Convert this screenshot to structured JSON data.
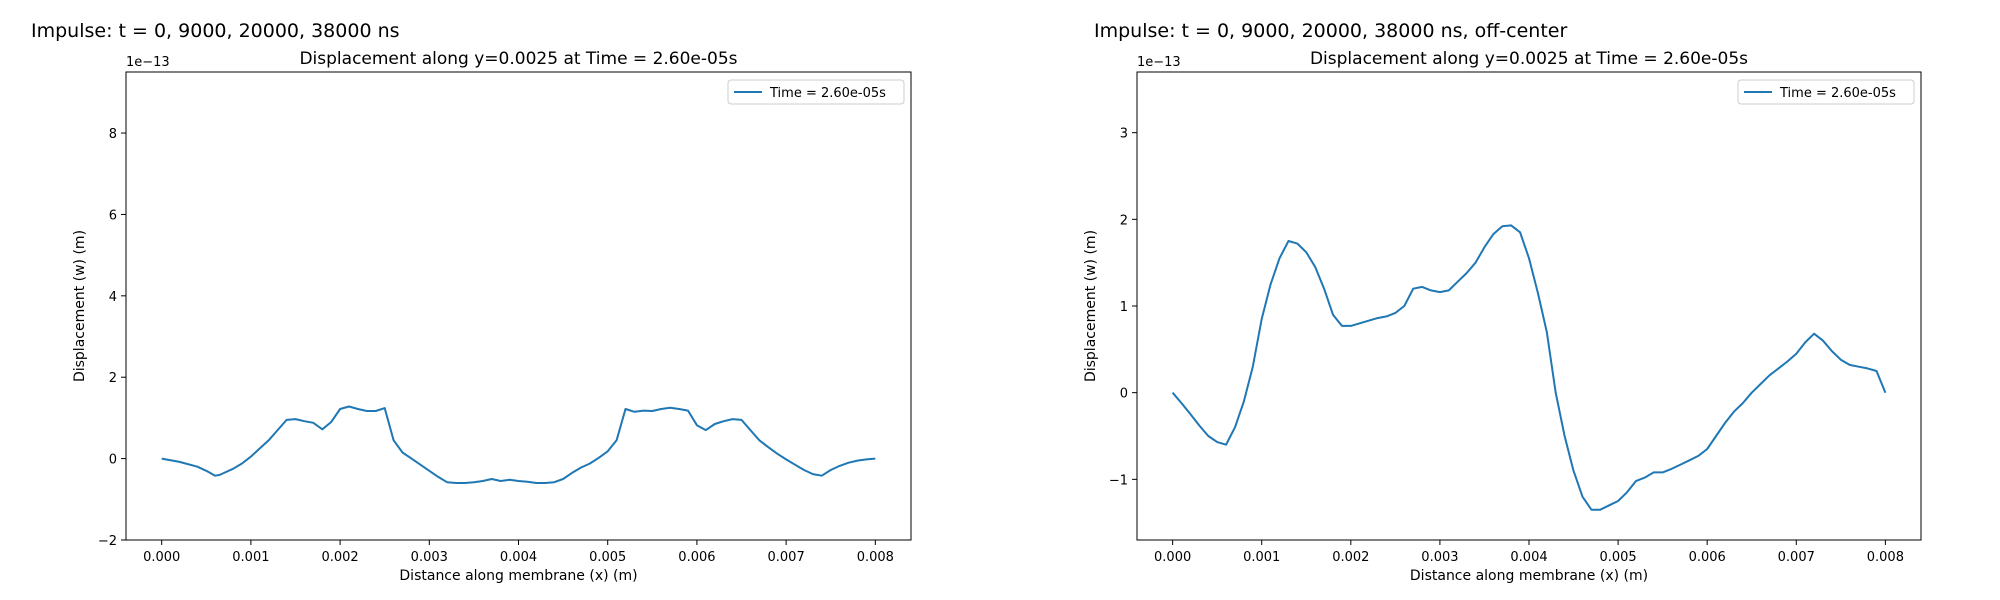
{
  "panels": [
    {
      "header": "Impulse: t = 0, 9000, 20000, 38000 ns"
    },
    {
      "header": "Impulse: t = 0, 9000, 20000, 38000 ns, off-center"
    }
  ],
  "chart_data": [
    {
      "type": "line",
      "title": "Displacement along y=0.0025 at Time = 2.60e-05s",
      "xlabel": "Distance along membrane (x) (m)",
      "ylabel": "Displacement (w) (m)",
      "y_scale_label": "1e−13",
      "xlim": [
        -0.0004,
        0.0084
      ],
      "ylim": [
        -2.0,
        9.5
      ],
      "xticks": [
        0.0,
        0.001,
        0.002,
        0.003,
        0.004,
        0.005,
        0.006,
        0.007,
        0.008
      ],
      "xtick_labels": [
        "0.000",
        "0.001",
        "0.002",
        "0.003",
        "0.004",
        "0.005",
        "0.006",
        "0.007",
        "0.008"
      ],
      "yticks": [
        -2,
        0,
        2,
        4,
        6,
        8
      ],
      "ytick_labels": [
        "−2",
        "0",
        "2",
        "4",
        "6",
        "8"
      ],
      "grid": false,
      "legend_position": "top-right",
      "color": "#1f77b4",
      "series": [
        {
          "name": "Time = 2.60e-05s",
          "x": [
            0.0,
            0.0002,
            0.0004,
            0.0005,
            0.0006,
            0.00065,
            0.0007,
            0.0008,
            0.0009,
            0.001,
            0.0011,
            0.0012,
            0.0013,
            0.0014,
            0.0015,
            0.0016,
            0.0017,
            0.0018,
            0.0019,
            0.002,
            0.0021,
            0.0022,
            0.0023,
            0.0024,
            0.0025,
            0.0026,
            0.0027,
            0.0028,
            0.0029,
            0.003,
            0.0031,
            0.0032,
            0.0033,
            0.0034,
            0.0035,
            0.0036,
            0.0037,
            0.0038,
            0.0039,
            0.004,
            0.0041,
            0.0042,
            0.0043,
            0.0044,
            0.0045,
            0.0046,
            0.0047,
            0.0048,
            0.0049,
            0.005,
            0.0051,
            0.0052,
            0.0053,
            0.0054,
            0.0055,
            0.0056,
            0.0057,
            0.0058,
            0.0059,
            0.006,
            0.0061,
            0.0062,
            0.0063,
            0.0064,
            0.0065,
            0.0066,
            0.0067,
            0.0068,
            0.0069,
            0.007,
            0.0071,
            0.0072,
            0.0073,
            0.0074,
            0.0075,
            0.0076,
            0.0077,
            0.0078,
            0.0079,
            0.008
          ],
          "y": [
            0.0,
            -0.08,
            -0.2,
            -0.3,
            -0.42,
            -0.4,
            -0.35,
            -0.25,
            -0.12,
            0.05,
            0.25,
            0.45,
            0.7,
            0.95,
            0.97,
            0.92,
            0.88,
            0.72,
            0.9,
            1.22,
            1.28,
            1.22,
            1.17,
            1.17,
            1.24,
            0.45,
            0.15,
            0.0,
            -0.15,
            -0.3,
            -0.45,
            -0.58,
            -0.6,
            -0.6,
            -0.58,
            -0.55,
            -0.5,
            -0.55,
            -0.52,
            -0.55,
            -0.57,
            -0.6,
            -0.6,
            -0.58,
            -0.5,
            -0.35,
            -0.22,
            -0.12,
            0.02,
            0.18,
            0.45,
            1.22,
            1.15,
            1.18,
            1.17,
            1.22,
            1.25,
            1.22,
            1.18,
            0.82,
            0.7,
            0.85,
            0.92,
            0.97,
            0.95,
            0.7,
            0.45,
            0.28,
            0.12,
            -0.02,
            -0.15,
            -0.28,
            -0.38,
            -0.42,
            -0.28,
            -0.18,
            -0.1,
            -0.05,
            -0.02,
            0.0
          ]
        }
      ]
    },
    {
      "type": "line",
      "title": "Displacement along y=0.0025 at Time = 2.60e-05s",
      "xlabel": "Distance along membrane (x) (m)",
      "ylabel": "Displacement (w) (m)",
      "y_scale_label": "1e−13",
      "xlim": [
        -0.0004,
        0.0084
      ],
      "ylim": [
        -1.7,
        3.7
      ],
      "xticks": [
        0.0,
        0.001,
        0.002,
        0.003,
        0.004,
        0.005,
        0.006,
        0.007,
        0.008
      ],
      "xtick_labels": [
        "0.000",
        "0.001",
        "0.002",
        "0.003",
        "0.004",
        "0.005",
        "0.006",
        "0.007",
        "0.008"
      ],
      "yticks": [
        -1,
        0,
        1,
        2,
        3
      ],
      "ytick_labels": [
        "−1",
        "0",
        "1",
        "2",
        "3"
      ],
      "grid": false,
      "legend_position": "top-right",
      "color": "#1f77b4",
      "series": [
        {
          "name": "Time = 2.60e-05s",
          "x": [
            0.0,
            0.0001,
            0.0002,
            0.0003,
            0.0004,
            0.0005,
            0.0006,
            0.00065,
            0.0007,
            0.0008,
            0.0009,
            0.001,
            0.0011,
            0.0012,
            0.0013,
            0.0014,
            0.0015,
            0.0016,
            0.0017,
            0.0018,
            0.0019,
            0.002,
            0.0021,
            0.0022,
            0.0023,
            0.0024,
            0.0025,
            0.0026,
            0.0027,
            0.0028,
            0.0029,
            0.003,
            0.0031,
            0.0032,
            0.0033,
            0.0034,
            0.0035,
            0.0036,
            0.0037,
            0.0038,
            0.0039,
            0.004,
            0.0041,
            0.0042,
            0.0043,
            0.0044,
            0.0045,
            0.0046,
            0.0047,
            0.0048,
            0.0049,
            0.005,
            0.0051,
            0.0052,
            0.0053,
            0.0054,
            0.0055,
            0.0056,
            0.0057,
            0.0058,
            0.0059,
            0.006,
            0.0061,
            0.0062,
            0.0063,
            0.0064,
            0.0065,
            0.0066,
            0.0067,
            0.0068,
            0.0069,
            0.007,
            0.0071,
            0.0072,
            0.0073,
            0.0074,
            0.0075,
            0.0076,
            0.0077,
            0.0078,
            0.0079,
            0.008
          ],
          "y": [
            0.0,
            -0.12,
            -0.25,
            -0.38,
            -0.5,
            -0.57,
            -0.6,
            -0.5,
            -0.4,
            -0.1,
            0.3,
            0.85,
            1.25,
            1.55,
            1.75,
            1.72,
            1.62,
            1.45,
            1.2,
            0.9,
            0.77,
            0.77,
            0.8,
            0.83,
            0.86,
            0.88,
            0.92,
            1.0,
            1.2,
            1.22,
            1.18,
            1.16,
            1.18,
            1.28,
            1.38,
            1.5,
            1.68,
            1.83,
            1.92,
            1.93,
            1.85,
            1.55,
            1.15,
            0.7,
            0.0,
            -0.5,
            -0.9,
            -1.2,
            -1.35,
            -1.35,
            -1.3,
            -1.25,
            -1.15,
            -1.02,
            -0.98,
            -0.92,
            -0.92,
            -0.88,
            -0.83,
            -0.78,
            -0.73,
            -0.65,
            -0.5,
            -0.35,
            -0.22,
            -0.12,
            0.0,
            0.1,
            0.2,
            0.28,
            0.36,
            0.45,
            0.58,
            0.68,
            0.6,
            0.48,
            0.38,
            0.32,
            0.3,
            0.28,
            0.25,
            0.0
          ]
        }
      ]
    }
  ]
}
